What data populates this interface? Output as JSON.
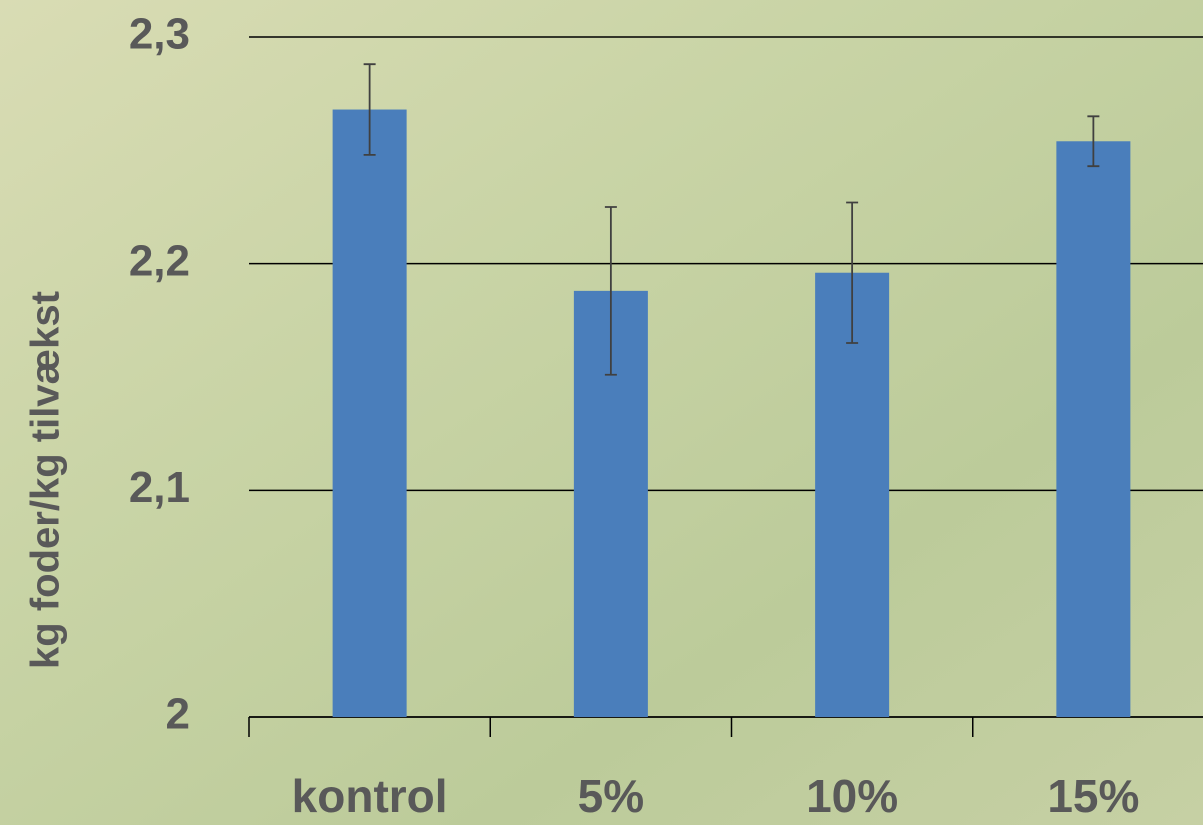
{
  "chart_data": {
    "type": "bar",
    "y_axis_label": "kg foder/kg tilvækst",
    "categories": [
      "kontrol",
      "5%",
      "10%",
      "15%"
    ],
    "values": [
      2.268,
      2.188,
      2.196,
      2.254
    ],
    "errors": [
      0.02,
      0.037,
      0.031,
      0.011
    ],
    "color": "#4a7ebb",
    "ylim": [
      2,
      2.3
    ],
    "yticks": [
      2,
      {
        "value": 2.1,
        "label": "2,1"
      },
      {
        "value": 2.2,
        "label": "2,2"
      },
      {
        "value": 2.3,
        "label": "2,3"
      }
    ],
    "grid": true
  }
}
